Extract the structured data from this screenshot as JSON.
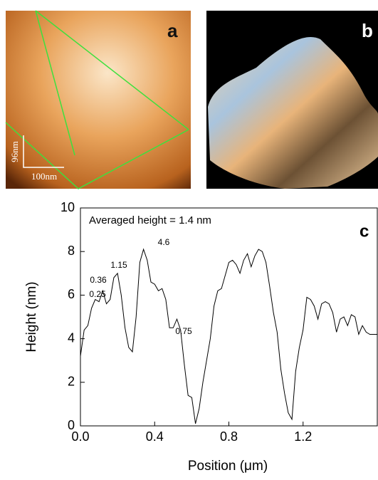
{
  "images": [
    {
      "label": "a",
      "scale_labels": [
        "96nm",
        "100nm"
      ]
    },
    {
      "label": "b"
    }
  ],
  "chart_data": {
    "type": "line",
    "panel_label": "c",
    "subtitle": "Averaged height = 1.4 nm",
    "x_label": "Position (μm)",
    "y_label": "Height (nm)",
    "color": "#000000",
    "x": [
      0,
      0.02,
      0.04,
      0.06,
      0.08,
      0.1,
      0.12,
      0.14,
      0.16,
      0.18,
      0.2,
      0.22,
      0.24,
      0.26,
      0.28,
      0.3,
      0.32,
      0.34,
      0.36,
      0.38,
      0.4,
      0.42,
      0.44,
      0.46,
      0.48,
      0.5,
      0.52,
      0.54,
      0.56,
      0.58,
      0.6,
      0.62,
      0.64,
      0.66,
      0.68,
      0.7,
      0.72,
      0.74,
      0.76,
      0.78,
      0.8,
      0.82,
      0.84,
      0.86,
      0.88,
      0.9,
      0.92,
      0.94,
      0.96,
      0.98,
      1.0,
      1.02,
      1.04,
      1.06,
      1.08,
      1.1,
      1.12,
      1.14,
      1.16,
      1.18,
      1.2,
      1.22,
      1.24,
      1.26,
      1.28,
      1.3,
      1.32,
      1.34,
      1.36,
      1.38,
      1.4,
      1.42,
      1.44,
      1.46,
      1.48,
      1.5,
      1.52,
      1.54,
      1.56,
      1.58,
      1.6
    ],
    "values": [
      3.2,
      4.4,
      4.6,
      5.4,
      5.8,
      5.7,
      6.2,
      5.6,
      5.8,
      6.8,
      7.0,
      6.0,
      4.5,
      3.6,
      3.4,
      5.0,
      7.5,
      8.1,
      7.6,
      6.6,
      6.5,
      6.2,
      6.3,
      5.8,
      4.5,
      4.5,
      4.9,
      4.4,
      2.8,
      1.4,
      1.3,
      0.1,
      0.8,
      2.0,
      3.0,
      4.0,
      5.5,
      6.2,
      6.3,
      6.9,
      7.5,
      7.6,
      7.4,
      7.0,
      7.6,
      7.9,
      7.3,
      7.8,
      8.1,
      8.0,
      7.5,
      6.4,
      5.2,
      4.3,
      2.6,
      1.5,
      0.6,
      0.3,
      2.5,
      3.6,
      4.4,
      5.9,
      5.8,
      5.5,
      4.9,
      5.6,
      5.7,
      5.6,
      5.2,
      4.3,
      4.9,
      5.0,
      4.6,
      5.1,
      5.0,
      4.2,
      4.6,
      4.3,
      4.2,
      4.2,
      4.2
    ],
    "annotations": [
      "0.25",
      "0.36",
      "1.15",
      "4.6",
      "0.75"
    ],
    "xlim": [
      0,
      1.6
    ],
    "xticks": [
      {
        "value": 0,
        "label": "0.0"
      },
      0.4,
      0.8,
      1.2
    ],
    "ylim": [
      0,
      10
    ],
    "yticks": [
      0,
      2,
      4,
      6,
      8,
      10
    ]
  }
}
